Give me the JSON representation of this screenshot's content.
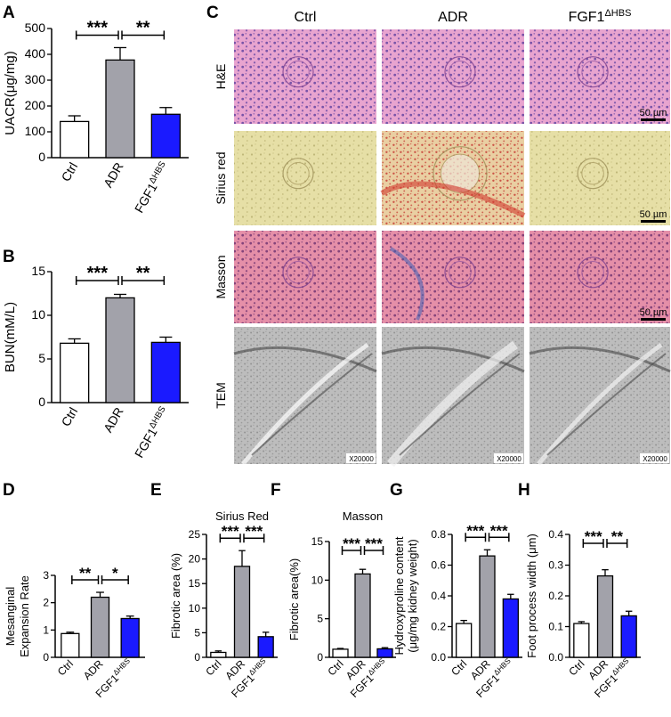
{
  "figure": {
    "panel_c": {
      "letter": "C",
      "columns": [
        "Ctrl",
        "ADR",
        "FGF1"
      ],
      "column_sup": [
        "",
        "",
        "ΔHBS"
      ],
      "rows": [
        "H&E",
        "Sirius red",
        "Masson",
        "TEM"
      ],
      "scale_bar_label": "50 µm",
      "tem_magnification": "X20000",
      "image_colors": {
        "he": "#e8a4cf",
        "sirius": "#e6dfa6",
        "sirius_adr": "#e9cfa2",
        "masson": "#e58fa8",
        "tem": "#bdbdbd"
      }
    }
  },
  "colors": {
    "ctrl": "#ffffff",
    "adr": "#a2a2aa",
    "fgf1": "#1a1aff",
    "stroke": "#000000"
  },
  "chart_data": [
    {
      "id": "A",
      "type": "bar",
      "letter": "A",
      "categories": [
        "Ctrl",
        "ADR",
        "FGF1"
      ],
      "category_sup": [
        "",
        "",
        "ΔHBS"
      ],
      "values": [
        140,
        378,
        168
      ],
      "errors": [
        22,
        48,
        26
      ],
      "ylabel": "UACR(μg/mg)",
      "ylim": [
        0,
        500
      ],
      "yticks": [
        0,
        100,
        200,
        300,
        400,
        500
      ],
      "significance": [
        {
          "from": 0,
          "to": 1,
          "label": "***"
        },
        {
          "from": 1,
          "to": 2,
          "label": "**"
        }
      ]
    },
    {
      "id": "B",
      "type": "bar",
      "letter": "B",
      "categories": [
        "Ctrl",
        "ADR",
        "FGF1"
      ],
      "category_sup": [
        "",
        "",
        "ΔHBS"
      ],
      "values": [
        6.8,
        12.0,
        6.9
      ],
      "errors": [
        0.5,
        0.4,
        0.6
      ],
      "ylabel": "BUN(mM/L)",
      "ylim": [
        0,
        15
      ],
      "yticks": [
        0,
        5,
        10,
        15
      ],
      "significance": [
        {
          "from": 0,
          "to": 1,
          "label": "***"
        },
        {
          "from": 1,
          "to": 2,
          "label": "**"
        }
      ]
    },
    {
      "id": "D",
      "type": "bar",
      "letter": "D",
      "categories": [
        "Ctrl",
        "ADR",
        "FGF1"
      ],
      "category_sup": [
        "",
        "",
        "ΔHBS"
      ],
      "values": [
        0.87,
        2.2,
        1.42
      ],
      "errors": [
        0.05,
        0.18,
        0.09
      ],
      "ylabel": [
        "Mesanginal",
        "Expansion Rate"
      ],
      "ylim": [
        0,
        3
      ],
      "yticks": [
        0,
        1,
        2,
        3
      ],
      "significance": [
        {
          "from": 0,
          "to": 1,
          "label": "**"
        },
        {
          "from": 1,
          "to": 2,
          "label": "*"
        }
      ]
    },
    {
      "id": "E",
      "type": "bar",
      "letter": "E",
      "title": "Sirius Red",
      "categories": [
        "Ctrl",
        "ADR",
        "FGF1"
      ],
      "category_sup": [
        "",
        "",
        "ΔHBS"
      ],
      "values": [
        1.0,
        18.5,
        4.2
      ],
      "errors": [
        0.3,
        3.2,
        0.9
      ],
      "ylabel": "Fibrotic area (%)",
      "ylim": [
        0,
        25
      ],
      "yticks": [
        0,
        5,
        10,
        15,
        20,
        25
      ],
      "significance": [
        {
          "from": 0,
          "to": 1,
          "label": "***"
        },
        {
          "from": 1,
          "to": 2,
          "label": "***"
        }
      ]
    },
    {
      "id": "F",
      "type": "bar",
      "letter": "F",
      "title": "Masson",
      "categories": [
        "Ctrl",
        "ADR",
        "FGF1"
      ],
      "category_sup": [
        "",
        "",
        "ΔHBS"
      ],
      "values": [
        1.05,
        10.8,
        1.1
      ],
      "errors": [
        0.1,
        0.6,
        0.15
      ],
      "ylabel": "Fibrotic area(%)",
      "ylim": [
        0,
        15
      ],
      "yticks": [
        0,
        5,
        10,
        15
      ],
      "significance": [
        {
          "from": 0,
          "to": 1,
          "label": "***"
        },
        {
          "from": 1,
          "to": 2,
          "label": "***"
        }
      ]
    },
    {
      "id": "G",
      "type": "bar",
      "letter": "G",
      "categories": [
        "Ctrl",
        "ADR",
        "FGF1"
      ],
      "category_sup": [
        "",
        "",
        "ΔHBS"
      ],
      "values": [
        0.22,
        0.66,
        0.38
      ],
      "errors": [
        0.02,
        0.04,
        0.03
      ],
      "ylabel": [
        "Hydroxyproline content",
        "(μg/mg kidney weight)"
      ],
      "ylim": [
        0,
        0.8
      ],
      "yticks": [
        0.0,
        0.2,
        0.4,
        0.6,
        0.8
      ],
      "significance": [
        {
          "from": 0,
          "to": 1,
          "label": "***"
        },
        {
          "from": 1,
          "to": 2,
          "label": "***"
        }
      ]
    },
    {
      "id": "H",
      "type": "bar",
      "letter": "H",
      "categories": [
        "Ctrl",
        "ADR",
        "FGF1"
      ],
      "category_sup": [
        "",
        "",
        "ΔHBS"
      ],
      "values": [
        0.11,
        0.265,
        0.135
      ],
      "errors": [
        0.006,
        0.02,
        0.015
      ],
      "ylabel": "Foot process width (μm)",
      "ylim": [
        0,
        0.4
      ],
      "yticks": [
        0.0,
        0.1,
        0.2,
        0.3,
        0.4
      ],
      "significance": [
        {
          "from": 0,
          "to": 1,
          "label": "***"
        },
        {
          "from": 1,
          "to": 2,
          "label": "**"
        }
      ]
    }
  ]
}
